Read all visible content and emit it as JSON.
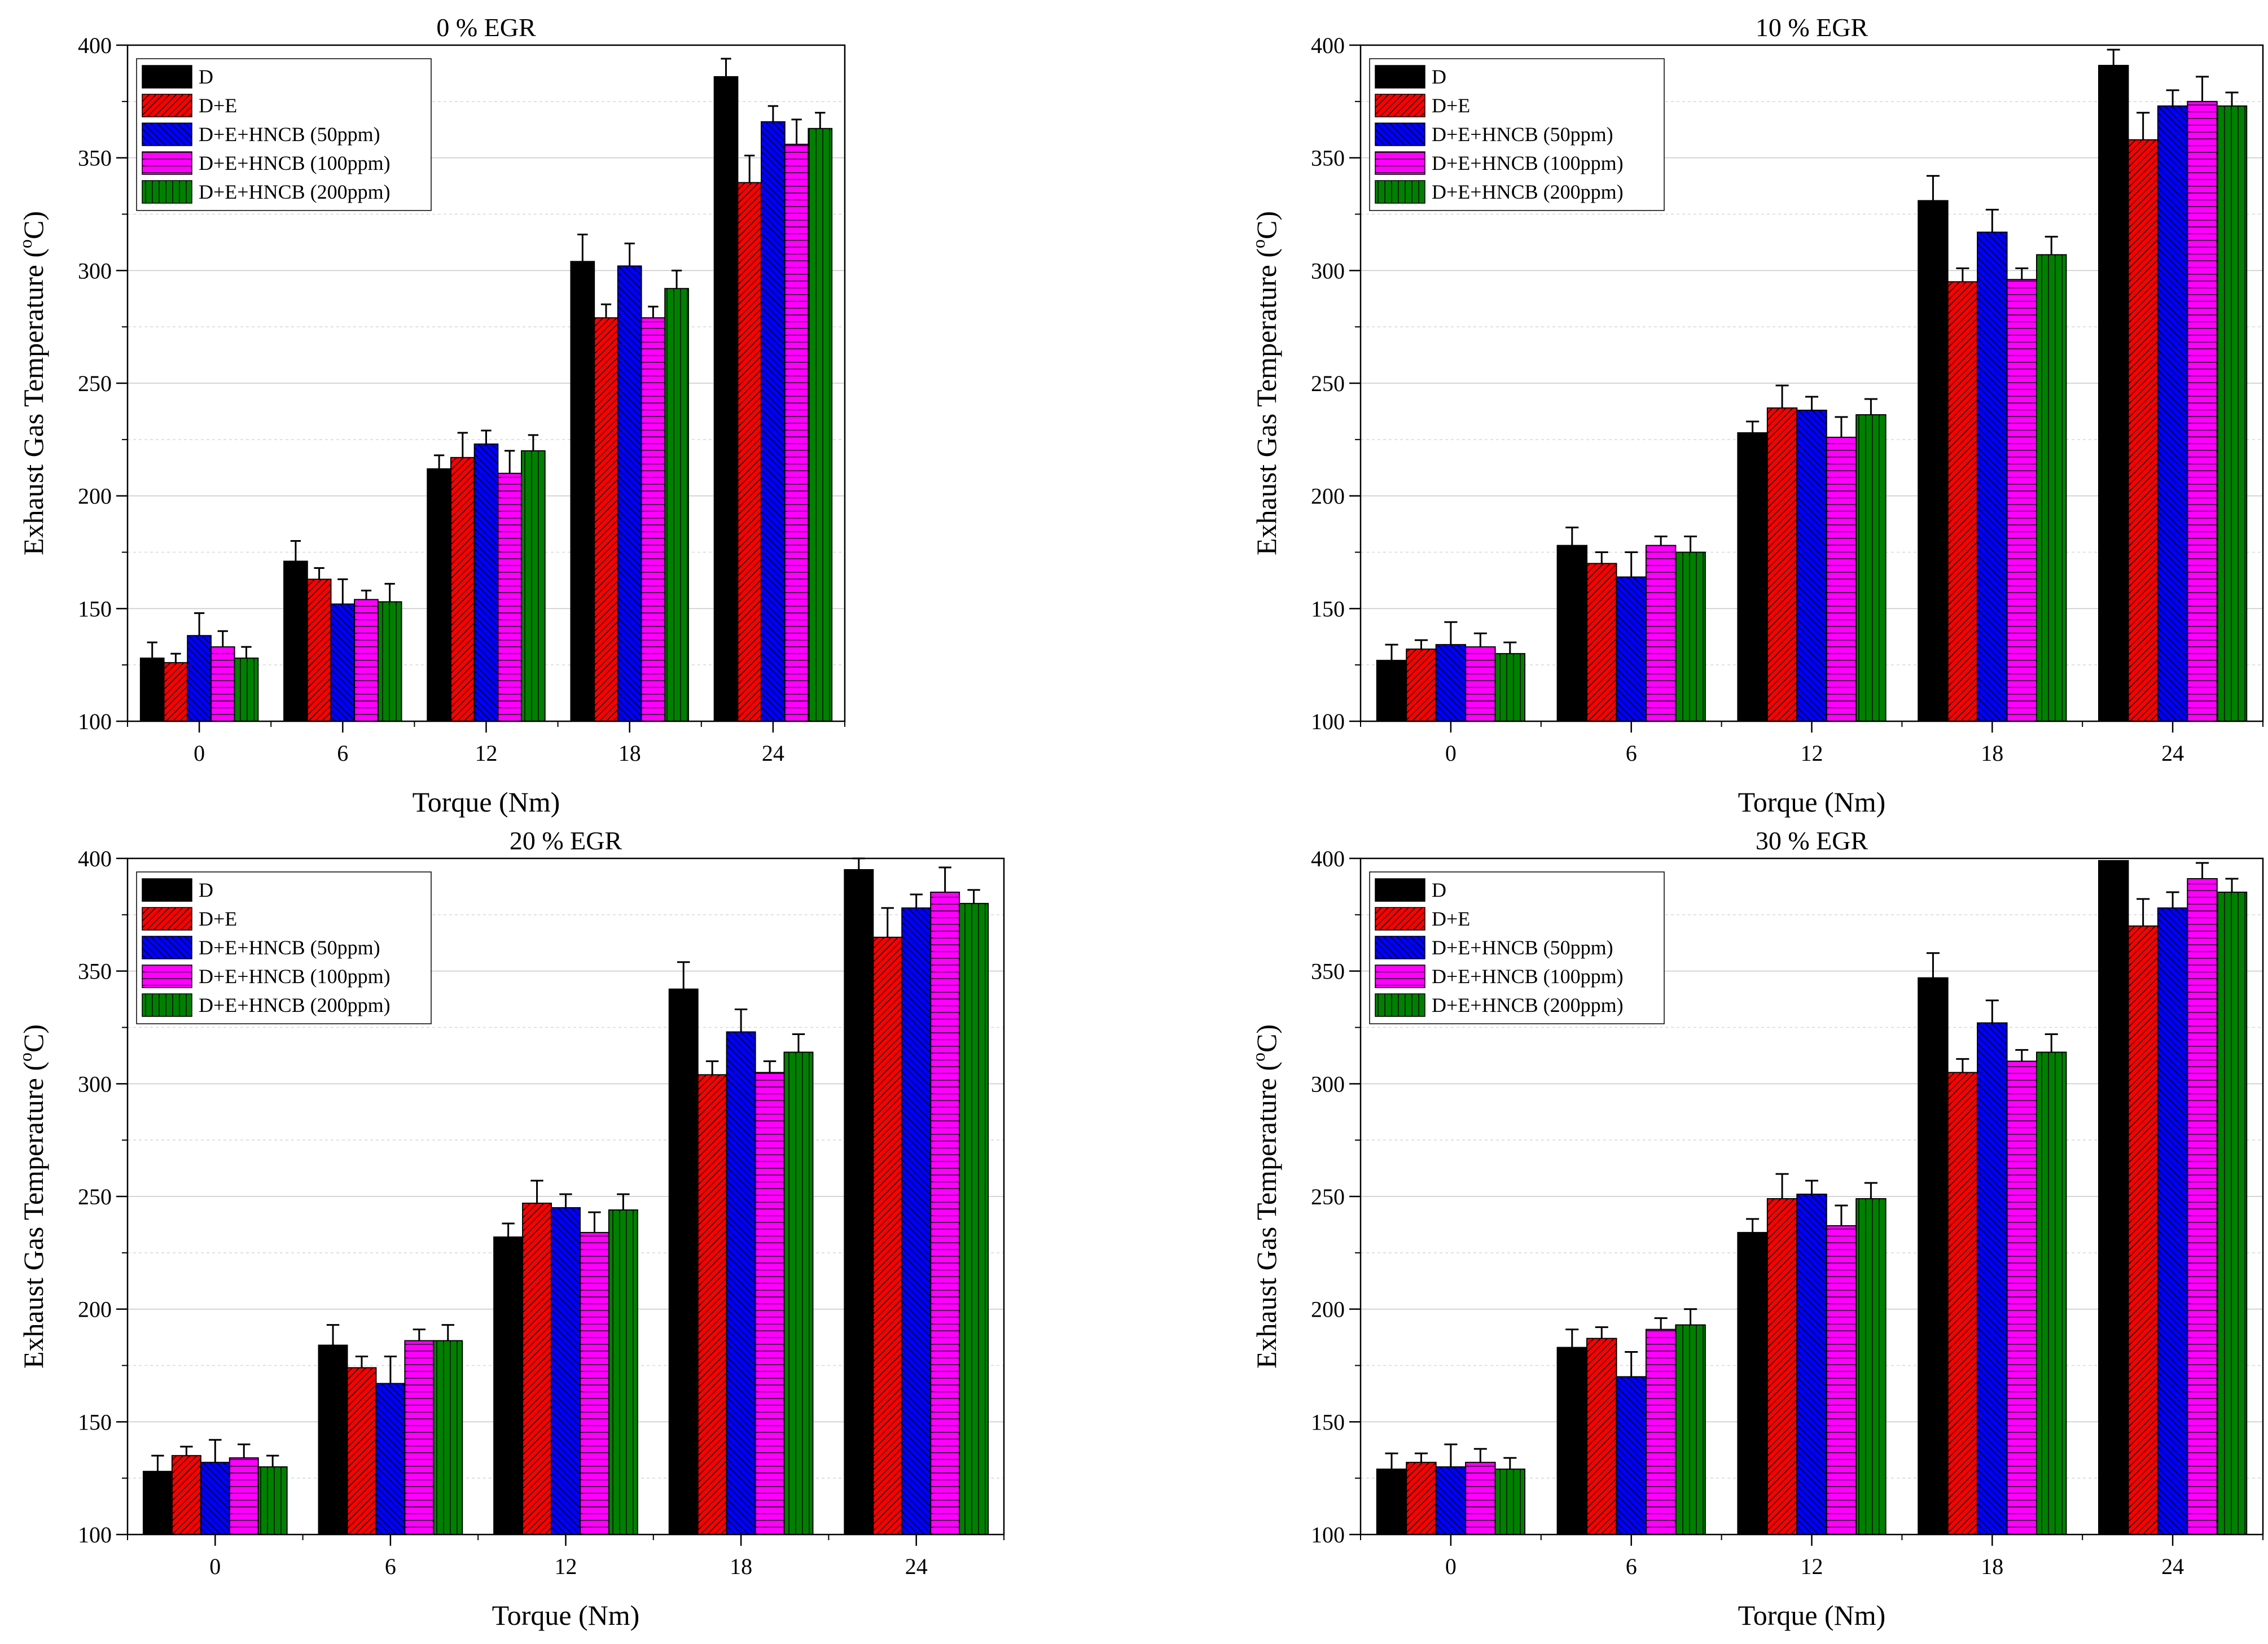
{
  "figure": {
    "patterns": [
      "solid",
      "diag-right",
      "diag-left",
      "horizontal",
      "vertical"
    ]
  },
  "chart_data": [
    {
      "type": "bar",
      "title": "0 % EGR",
      "xlabel": "Torque (Nm)",
      "ylabel": "Exhaust Gas Temperature (",
      "ylabel_sup": "o",
      "ylabel_suffix": "C)",
      "ylim": [
        100,
        400
      ],
      "yticks": [
        100,
        150,
        200,
        250,
        300,
        350,
        400
      ],
      "grid": true,
      "legend_position": "top-left",
      "categories": [
        "0",
        "6",
        "12",
        "18",
        "24"
      ],
      "series": [
        {
          "name": "D",
          "color": "#000000",
          "values": [
            128,
            171,
            212,
            304,
            386
          ],
          "errors": [
            7,
            9,
            6,
            12,
            8
          ]
        },
        {
          "name": "D+E",
          "color": "#ff0000",
          "values": [
            126,
            163,
            217,
            279,
            339
          ],
          "errors": [
            4,
            5,
            11,
            6,
            12
          ]
        },
        {
          "name": "D+E+HNCB (50ppm)",
          "color": "#0000ff",
          "values": [
            138,
            152,
            223,
            302,
            366
          ],
          "errors": [
            10,
            11,
            6,
            10,
            7
          ]
        },
        {
          "name": "D+E+HNCB (100ppm)",
          "color": "#ff00ff",
          "values": [
            133,
            154,
            210,
            279,
            356
          ],
          "errors": [
            7,
            4,
            10,
            5,
            11
          ]
        },
        {
          "name": "D+E+HNCB (200ppm)",
          "color": "#008000",
          "values": [
            128,
            153,
            220,
            292,
            363
          ],
          "errors": [
            5,
            8,
            7,
            8,
            7
          ]
        }
      ]
    },
    {
      "type": "bar",
      "title": "10 % EGR",
      "xlabel": "Torque (Nm)",
      "ylabel": "Exhaust Gas Temperature (",
      "ylabel_sup": "o",
      "ylabel_suffix": "C)",
      "ylim": [
        100,
        400
      ],
      "yticks": [
        100,
        150,
        200,
        250,
        300,
        350,
        400
      ],
      "grid": true,
      "legend_position": "top-left",
      "categories": [
        "0",
        "6",
        "12",
        "18",
        "24"
      ],
      "series": [
        {
          "name": "D",
          "color": "#000000",
          "values": [
            127,
            178,
            228,
            331,
            391
          ],
          "errors": [
            7,
            8,
            5,
            11,
            7
          ]
        },
        {
          "name": "D+E",
          "color": "#ff0000",
          "values": [
            132,
            170,
            239,
            295,
            358
          ],
          "errors": [
            4,
            5,
            10,
            6,
            12
          ]
        },
        {
          "name": "D+E+HNCB (50ppm)",
          "color": "#0000ff",
          "values": [
            134,
            164,
            238,
            317,
            373
          ],
          "errors": [
            10,
            11,
            6,
            10,
            7
          ]
        },
        {
          "name": "D+E+HNCB (100ppm)",
          "color": "#ff00ff",
          "values": [
            133,
            178,
            226,
            296,
            375
          ],
          "errors": [
            6,
            4,
            9,
            5,
            11
          ]
        },
        {
          "name": "D+E+HNCB (200ppm)",
          "color": "#008000",
          "values": [
            130,
            175,
            236,
            307,
            373
          ],
          "errors": [
            5,
            7,
            7,
            8,
            6
          ]
        }
      ]
    },
    {
      "type": "bar",
      "title": "20 % EGR",
      "xlabel": "Torque (Nm)",
      "ylabel": "Exhaust Gas Temperature (",
      "ylabel_sup": "o",
      "ylabel_suffix": "C)",
      "ylim": [
        100,
        400
      ],
      "yticks": [
        100,
        150,
        200,
        250,
        300,
        350,
        400
      ],
      "grid": true,
      "legend_position": "top-left",
      "categories": [
        "0",
        "6",
        "12",
        "18",
        "24"
      ],
      "series": [
        {
          "name": "D",
          "color": "#000000",
          "values": [
            128,
            184,
            232,
            342,
            395
          ],
          "errors": [
            7,
            9,
            6,
            12,
            7
          ]
        },
        {
          "name": "D+E",
          "color": "#ff0000",
          "values": [
            135,
            174,
            247,
            304,
            365
          ],
          "errors": [
            4,
            5,
            10,
            6,
            13
          ]
        },
        {
          "name": "D+E+HNCB (50ppm)",
          "color": "#0000ff",
          "values": [
            132,
            167,
            245,
            323,
            378
          ],
          "errors": [
            10,
            12,
            6,
            10,
            6
          ]
        },
        {
          "name": "D+E+HNCB (100ppm)",
          "color": "#ff00ff",
          "values": [
            134,
            186,
            234,
            305,
            385
          ],
          "errors": [
            6,
            5,
            9,
            5,
            11
          ]
        },
        {
          "name": "D+E+HNCB (200ppm)",
          "color": "#008000",
          "values": [
            130,
            186,
            244,
            314,
            380
          ],
          "errors": [
            5,
            7,
            7,
            8,
            6
          ]
        }
      ]
    },
    {
      "type": "bar",
      "title": "30 % EGR",
      "xlabel": "Torque (Nm)",
      "ylabel": "Exhaust Gas Temperature (",
      "ylabel_sup": "o",
      "ylabel_suffix": "C)",
      "ylim": [
        100,
        400
      ],
      "yticks": [
        100,
        150,
        200,
        250,
        300,
        350,
        400
      ],
      "grid": true,
      "legend_position": "top-left",
      "categories": [
        "0",
        "6",
        "12",
        "18",
        "24"
      ],
      "series": [
        {
          "name": "D",
          "color": "#000000",
          "values": [
            129,
            183,
            234,
            347,
            399
          ],
          "errors": [
            7,
            8,
            6,
            11,
            0
          ]
        },
        {
          "name": "D+E",
          "color": "#ff0000",
          "values": [
            132,
            187,
            249,
            305,
            370
          ],
          "errors": [
            4,
            5,
            11,
            6,
            12
          ]
        },
        {
          "name": "D+E+HNCB (50ppm)",
          "color": "#0000ff",
          "values": [
            130,
            170,
            251,
            327,
            378
          ],
          "errors": [
            10,
            11,
            6,
            10,
            7
          ]
        },
        {
          "name": "D+E+HNCB (100ppm)",
          "color": "#ff00ff",
          "values": [
            132,
            191,
            237,
            310,
            391
          ],
          "errors": [
            6,
            5,
            9,
            5,
            7
          ]
        },
        {
          "name": "D+E+HNCB (200ppm)",
          "color": "#008000",
          "values": [
            129,
            193,
            249,
            314,
            385
          ],
          "errors": [
            5,
            7,
            7,
            8,
            6
          ]
        }
      ]
    }
  ]
}
